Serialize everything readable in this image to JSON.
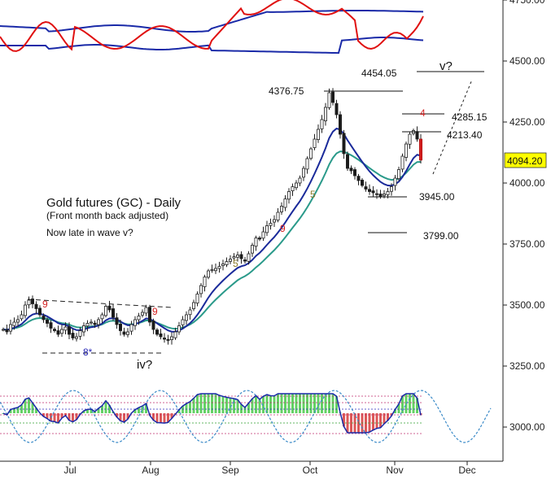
{
  "chart_data": {
    "type": "candlestick",
    "title": "Gold futures (GC) - Daily",
    "subtitle": "(Front month back adjusted)",
    "note": "Now late in wave v?",
    "x_labels": [
      "Jul",
      "Aug",
      "Sep",
      "Oct",
      "Nov",
      "Dec"
    ],
    "y_ticks": [
      "4750.00",
      "4500.00",
      "4250.00",
      "4000.00",
      "3750.00",
      "3500.00",
      "3250.00",
      "3000.00"
    ],
    "y_tick_values": [
      4750,
      4500,
      4250,
      4000,
      3750,
      3500,
      3250,
      3000
    ],
    "ylim": [
      2900,
      4780
    ],
    "last_price": "4094.20",
    "last_price_color": "#ffff00",
    "levels": [
      {
        "label": "4454.05",
        "value": 4454.05
      },
      {
        "label": "4376.75",
        "value": 4376.75
      },
      {
        "label": "4285.15",
        "value": 4285.15
      },
      {
        "label": "4213.40",
        "value": 4213.4
      },
      {
        "label": "3945.00",
        "value": 3945.0
      },
      {
        "label": "3799.00",
        "value": 3799.0
      }
    ],
    "wave_labels": {
      "iv": "iv?",
      "v": "v?"
    },
    "counts": [
      {
        "text": "9",
        "color": "#d42020"
      },
      {
        "text": "9",
        "color": "#d42020"
      },
      {
        "text": "8*",
        "color": "#2b2bb8"
      },
      {
        "text": "5",
        "color": "#8b7a2a"
      },
      {
        "text": "9",
        "color": "#d42020"
      },
      {
        "text": "5",
        "color": "#8b7a2a"
      },
      {
        "text": "4",
        "color": "#d42020"
      }
    ],
    "bar_count": 115,
    "closes": [
      3400,
      3390,
      3420,
      3430,
      3440,
      3460,
      3500,
      3520,
      3505,
      3485,
      3460,
      3440,
      3425,
      3405,
      3395,
      3380,
      3400,
      3410,
      3380,
      3365,
      3370,
      3395,
      3415,
      3425,
      3430,
      3420,
      3440,
      3460,
      3495,
      3480,
      3450,
      3420,
      3395,
      3380,
      3390,
      3420,
      3440,
      3455,
      3470,
      3490,
      3430,
      3400,
      3380,
      3370,
      3360,
      3355,
      3370,
      3390,
      3415,
      3440,
      3460,
      3480,
      3510,
      3545,
      3580,
      3615,
      3640,
      3645,
      3650,
      3658,
      3668,
      3678,
      3688,
      3698,
      3705,
      3690,
      3680,
      3710,
      3745,
      3775,
      3770,
      3800,
      3825,
      3835,
      3850,
      3880,
      3905,
      3935,
      3965,
      3985,
      4000,
      4020,
      4060,
      4100,
      4140,
      4180,
      4220,
      4260,
      4310,
      4370,
      4330,
      4280,
      4200,
      4120,
      4060,
      4050,
      4030,
      4010,
      3990,
      3975,
      3965,
      3960,
      3955,
      3945,
      3955,
      3965,
      3985,
      4020,
      4055,
      4110,
      4160,
      4200,
      4215,
      4180,
      4094
    ],
    "green_ma_color": "#2a9a8a",
    "blue_ma_color": "#1a2a9a",
    "red_osc_color": "#e01010",
    "cycle_color": "#3a8ac8"
  }
}
